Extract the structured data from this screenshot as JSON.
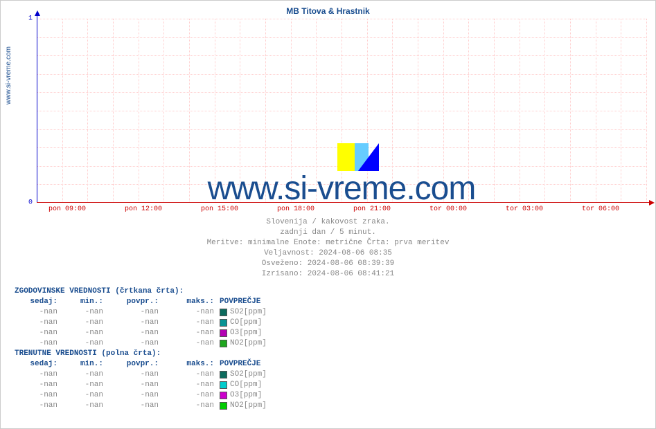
{
  "chart": {
    "title": "MB Titova & Hrastnik",
    "yaxis_label": "www.si-vreme.com",
    "watermark": "www.si-vreme.com",
    "background_color": "#ffffff",
    "grid_color": "#ffcccc",
    "xaxis_color": "#cc0000",
    "yaxis_color": "#0000cc",
    "title_color": "#1a4d8f",
    "ylim": [
      0,
      1
    ],
    "yticks": [
      0,
      1
    ],
    "xticks": [
      "pon 09:00",
      "pon 12:00",
      "pon 15:00",
      "pon 18:00",
      "pon 21:00",
      "tor 00:00",
      "tor 03:00",
      "tor 06:00"
    ],
    "h_gridlines_pct": [
      0,
      10,
      20,
      30,
      40,
      50,
      60,
      70,
      80,
      90
    ],
    "v_gridlines_count": 24,
    "watermark_fontsize": 48,
    "title_fontsize": 12
  },
  "meta": {
    "line1": "Slovenija / kakovost zraka.",
    "line2": "zadnji dan / 5 minut.",
    "line3": "Meritve: minimalne  Enote: metrične  Črta: prva meritev",
    "line4": "Veljavnost: 2024-08-06 08:35",
    "line5": "Osveženo: 2024-08-06 08:39:39",
    "line6": "Izrisano: 2024-08-06 08:41:21"
  },
  "tables": {
    "hist_title": "ZGODOVINSKE VREDNOSTI (črtkana črta):",
    "curr_title": "TRENUTNE VREDNOSTI (polna črta):",
    "headers": {
      "sedaj": "sedaj:",
      "min": "min.:",
      "povpr": "povpr.:",
      "maks": "maks.:",
      "povp": "POVPREČJE"
    },
    "hist_rows": [
      {
        "sedaj": "-nan",
        "min": "-nan",
        "povpr": "-nan",
        "maks": "-nan",
        "color": "#0d6b5e",
        "label": "SO2[ppm]"
      },
      {
        "sedaj": "-nan",
        "min": "-nan",
        "povpr": "-nan",
        "maks": "-nan",
        "color": "#089494",
        "label": "CO[ppm]"
      },
      {
        "sedaj": "-nan",
        "min": "-nan",
        "povpr": "-nan",
        "maks": "-nan",
        "color": "#b300b3",
        "label": "O3[ppm]"
      },
      {
        "sedaj": "-nan",
        "min": "-nan",
        "povpr": "-nan",
        "maks": "-nan",
        "color": "#1fa61f",
        "label": "NO2[ppm]"
      }
    ],
    "curr_rows": [
      {
        "sedaj": "-nan",
        "min": "-nan",
        "povpr": "-nan",
        "maks": "-nan",
        "color": "#0d6b5e",
        "label": "SO2[ppm]"
      },
      {
        "sedaj": "-nan",
        "min": "-nan",
        "povpr": "-nan",
        "maks": "-nan",
        "color": "#00cccc",
        "label": "CO[ppm]"
      },
      {
        "sedaj": "-nan",
        "min": "-nan",
        "povpr": "-nan",
        "maks": "-nan",
        "color": "#cc00cc",
        "label": "O3[ppm]"
      },
      {
        "sedaj": "-nan",
        "min": "-nan",
        "povpr": "-nan",
        "maks": "-nan",
        "color": "#00cc00",
        "label": "NO2[ppm]"
      }
    ]
  }
}
